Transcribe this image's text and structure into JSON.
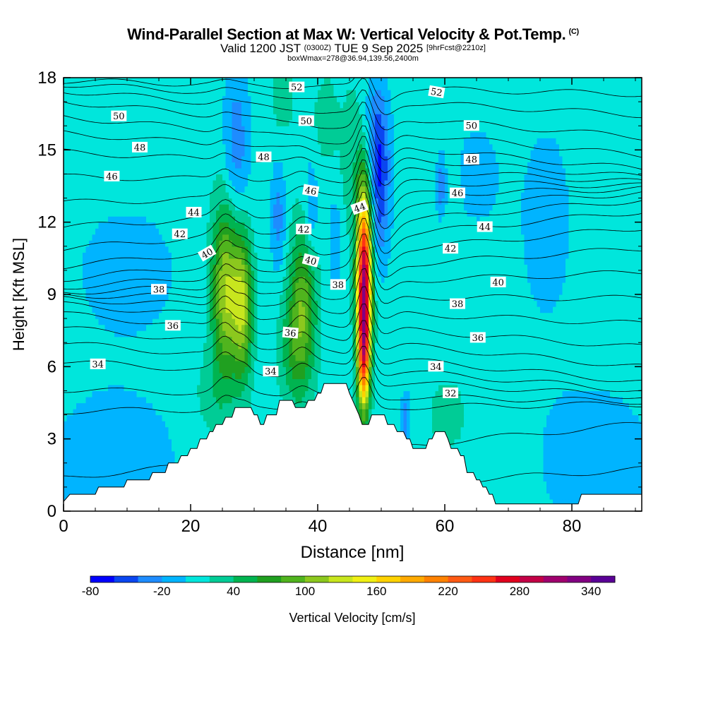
{
  "chart_data": {
    "type": "heatmap",
    "title": "Wind-Parallel Section at Max W: Vertical Velocity & Pot.Temp.",
    "title_mark": "(C)",
    "subtitle_main": "Valid 1200 JST",
    "subtitle_utc": "(0300Z)",
    "subtitle_date": "TUE 9 Sep 2025",
    "subtitle_forecast": "[9hrFcst@2210z]",
    "note": "boxWmax=278@36.94,139.56,2400m",
    "xlabel": "Distance [nm]",
    "ylabel": "Height [Kft MSL]",
    "xlim": [
      0,
      91
    ],
    "ylim": [
      0,
      18
    ],
    "x_ticks": [
      "0",
      "20",
      "40",
      "60",
      "80"
    ],
    "y_ticks": [
      "0",
      "3",
      "6",
      "9",
      "12",
      "15",
      "18"
    ],
    "colorbar": {
      "label": "Vertical Velocity [cm/s]",
      "ticks": [
        "-80",
        "-20",
        "40",
        "100",
        "160",
        "220",
        "280",
        "340"
      ],
      "levels": [
        -80,
        -60,
        -40,
        -20,
        0,
        20,
        40,
        60,
        80,
        100,
        120,
        140,
        160,
        180,
        200,
        220,
        240,
        260,
        280,
        300,
        320,
        340,
        360
      ],
      "colors": [
        "#0000ff",
        "#0a46f0",
        "#1e8cff",
        "#00b4ff",
        "#00e6dc",
        "#00cc96",
        "#00b450",
        "#20a020",
        "#50b41e",
        "#8cc81e",
        "#c8e61e",
        "#f0f014",
        "#ffd200",
        "#ffaa00",
        "#ff8200",
        "#ff5a14",
        "#ff3214",
        "#e1001e",
        "#c30046",
        "#a0006e",
        "#820082",
        "#5a0096"
      ]
    },
    "background_value": 10,
    "updrafts": [
      {
        "x": 25.5,
        "y": 9.2,
        "sx": 1.5,
        "sy": 2.6,
        "w": 110
      },
      {
        "x": 28.2,
        "y": 8.6,
        "sx": 1.1,
        "sy": 2.2,
        "w": 100
      },
      {
        "x": 37.6,
        "y": 8.4,
        "sx": 1.5,
        "sy": 2.3,
        "w": 85
      },
      {
        "x": 47.3,
        "y": 9.4,
        "sx": 0.8,
        "sy": 2.6,
        "w": 300
      },
      {
        "x": 47.2,
        "y": 6.2,
        "sx": 0.6,
        "sy": 1.5,
        "w": 130
      },
      {
        "x": 46.2,
        "y": 14.5,
        "sx": 1.8,
        "sy": 2.5,
        "w": 30
      },
      {
        "x": 34.5,
        "y": 17.2,
        "sx": 1.2,
        "sy": 1.0,
        "w": 25
      },
      {
        "x": 41.2,
        "y": 16.3,
        "sx": 1.2,
        "sy": 1.2,
        "w": 25
      },
      {
        "x": 60.5,
        "y": 4.0,
        "sx": 1.8,
        "sy": 0.9,
        "w": 28
      },
      {
        "x": 23.2,
        "y": 4.8,
        "sx": 2.0,
        "sy": 1.3,
        "w": 20
      },
      {
        "x": 35.8,
        "y": 6.6,
        "sx": 1.5,
        "sy": 1.6,
        "w": 30
      }
    ],
    "downdrafts": [
      {
        "x": 49.8,
        "y": 13.6,
        "sx": 1.1,
        "sy": 2.2,
        "w": -65
      },
      {
        "x": 48.6,
        "y": 15.8,
        "sx": 1.6,
        "sy": 1.7,
        "w": -35
      },
      {
        "x": 27.2,
        "y": 15.0,
        "sx": 1.4,
        "sy": 2.4,
        "w": -45
      },
      {
        "x": 33.8,
        "y": 12.2,
        "sx": 0.8,
        "sy": 1.5,
        "w": -40
      },
      {
        "x": 39.0,
        "y": 12.5,
        "sx": 0.8,
        "sy": 1.5,
        "w": -30
      },
      {
        "x": 42.8,
        "y": 11.2,
        "sx": 0.8,
        "sy": 1.5,
        "w": -25
      },
      {
        "x": 59.4,
        "y": 13.5,
        "sx": 0.5,
        "sy": 0.8,
        "w": -40
      },
      {
        "x": 53.8,
        "y": 3.7,
        "sx": 0.5,
        "sy": 0.8,
        "w": -45
      },
      {
        "x": 10.0,
        "y": 10.0,
        "sx": 6.0,
        "sy": 2.0,
        "w": -20
      },
      {
        "x": 8.0,
        "y": 2.0,
        "sx": 8.0,
        "sy": 2.5,
        "w": -20
      },
      {
        "x": 84.0,
        "y": 2.0,
        "sx": 7.0,
        "sy": 2.5,
        "w": -20
      },
      {
        "x": 76.0,
        "y": 12.0,
        "sx": 4.0,
        "sy": 4.0,
        "w": -15
      },
      {
        "x": 65.0,
        "y": 14.0,
        "sx": 3.0,
        "sy": 2.0,
        "w": -15
      }
    ],
    "theta_contours": {
      "base_y": [
        1.0,
        2.5,
        4.3,
        4.8,
        5.5,
        6.0,
        6.5,
        7.1,
        7.7,
        8.3,
        8.9,
        9.5,
        10.1,
        10.7,
        11.3,
        11.9,
        12.5,
        13.1,
        13.7,
        14.3,
        14.8,
        15.3,
        15.9,
        16.5,
        17.1,
        17.6
      ],
      "disturbances": [
        {
          "x": 25.5,
          "y": 9.0,
          "sx": 1.4,
          "sy": 4.0,
          "a": 1.0
        },
        {
          "x": 28.5,
          "y": 8.5,
          "sx": 1.0,
          "sy": 3.0,
          "a": 0.5
        },
        {
          "x": 37.5,
          "y": 8.5,
          "sx": 1.5,
          "sy": 3.5,
          "a": 0.8
        },
        {
          "x": 47.3,
          "y": 10.0,
          "sx": 1.1,
          "sy": 5.5,
          "a": 2.0
        },
        {
          "x": 50.5,
          "y": 13.5,
          "sx": 1.5,
          "sy": 4.0,
          "a": -0.8
        }
      ],
      "labels": [
        {
          "text": "52",
          "x": 36.7,
          "y": 17.6,
          "angle": 0
        },
        {
          "text": "52",
          "x": 58.7,
          "y": 17.4,
          "angle": 10
        },
        {
          "text": "50",
          "x": 8.7,
          "y": 16.4,
          "angle": 0
        },
        {
          "text": "50",
          "x": 38.2,
          "y": 16.2,
          "angle": 0
        },
        {
          "text": "50",
          "x": 64.2,
          "y": 16.0,
          "angle": 0
        },
        {
          "text": "48",
          "x": 12.0,
          "y": 15.1,
          "angle": 0
        },
        {
          "text": "48",
          "x": 31.5,
          "y": 14.7,
          "angle": 0
        },
        {
          "text": "48",
          "x": 64.2,
          "y": 14.6,
          "angle": 0
        },
        {
          "text": "46",
          "x": 7.6,
          "y": 13.9,
          "angle": 0
        },
        {
          "text": "46",
          "x": 38.9,
          "y": 13.3,
          "angle": 10
        },
        {
          "text": "46",
          "x": 62.0,
          "y": 13.2,
          "angle": 0
        },
        {
          "text": "44",
          "x": 20.5,
          "y": 12.4,
          "angle": 0
        },
        {
          "text": "44",
          "x": 46.6,
          "y": 12.6,
          "angle": -20
        },
        {
          "text": "44",
          "x": 66.3,
          "y": 11.8,
          "angle": 0
        },
        {
          "text": "42",
          "x": 18.3,
          "y": 11.5,
          "angle": 0
        },
        {
          "text": "42",
          "x": 37.8,
          "y": 11.7,
          "angle": 0
        },
        {
          "text": "42",
          "x": 60.9,
          "y": 10.9,
          "angle": 0
        },
        {
          "text": "40",
          "x": 22.6,
          "y": 10.7,
          "angle": -30
        },
        {
          "text": "40",
          "x": 38.9,
          "y": 10.4,
          "angle": 15
        },
        {
          "text": "40",
          "x": 68.4,
          "y": 9.5,
          "angle": 0
        },
        {
          "text": "38",
          "x": 15.0,
          "y": 9.2,
          "angle": 0
        },
        {
          "text": "38",
          "x": 43.2,
          "y": 9.4,
          "angle": 0
        },
        {
          "text": "38",
          "x": 62.0,
          "y": 8.6,
          "angle": 0
        },
        {
          "text": "36",
          "x": 17.2,
          "y": 7.7,
          "angle": 0
        },
        {
          "text": "36",
          "x": 35.7,
          "y": 7.4,
          "angle": 5
        },
        {
          "text": "36",
          "x": 65.2,
          "y": 7.2,
          "angle": 0
        },
        {
          "text": "34",
          "x": 5.4,
          "y": 6.1,
          "angle": 0
        },
        {
          "text": "34",
          "x": 32.6,
          "y": 5.8,
          "angle": 0
        },
        {
          "text": "34",
          "x": 58.6,
          "y": 6.0,
          "angle": 0
        },
        {
          "text": "32",
          "x": 60.9,
          "y": 4.9,
          "angle": 0
        }
      ]
    },
    "terrain": [
      [
        0,
        0.4
      ],
      [
        1,
        0.7
      ],
      [
        5,
        0.7
      ],
      [
        5.5,
        1.0
      ],
      [
        9.5,
        1.0
      ],
      [
        10,
        1.3
      ],
      [
        13.5,
        1.3
      ],
      [
        14,
        1.6
      ],
      [
        16,
        1.6
      ],
      [
        16.5,
        2.0
      ],
      [
        18,
        2.0
      ],
      [
        18.5,
        2.3
      ],
      [
        19.5,
        2.3
      ],
      [
        20,
        2.6
      ],
      [
        21,
        2.6
      ],
      [
        21.5,
        3.0
      ],
      [
        22.5,
        3.0
      ],
      [
        23,
        3.3
      ],
      [
        23.5,
        3.3
      ],
      [
        24,
        3.6
      ],
      [
        25,
        3.6
      ],
      [
        25.5,
        3.9
      ],
      [
        26.5,
        3.9
      ],
      [
        27,
        4.3
      ],
      [
        29.5,
        4.3
      ],
      [
        30,
        4.0
      ],
      [
        30.5,
        4.0
      ],
      [
        31,
        3.6
      ],
      [
        31.5,
        3.6
      ],
      [
        32,
        4.0
      ],
      [
        33.5,
        4.0
      ],
      [
        34,
        4.6
      ],
      [
        36,
        4.6
      ],
      [
        36.5,
        4.3
      ],
      [
        38,
        4.3
      ],
      [
        38.5,
        4.6
      ],
      [
        39.5,
        4.6
      ],
      [
        40,
        4.9
      ],
      [
        40.5,
        4.9
      ],
      [
        41,
        5.3
      ],
      [
        44.5,
        5.3
      ],
      [
        45,
        4.9
      ],
      [
        45.5,
        4.6
      ],
      [
        46,
        4.3
      ],
      [
        46.5,
        4.0
      ],
      [
        47,
        3.6
      ],
      [
        48,
        3.6
      ],
      [
        48.5,
        4.0
      ],
      [
        50.5,
        4.0
      ],
      [
        51,
        3.6
      ],
      [
        52,
        3.6
      ],
      [
        52.5,
        3.3
      ],
      [
        53.5,
        3.3
      ],
      [
        54,
        3.0
      ],
      [
        54.5,
        3.0
      ],
      [
        55,
        2.6
      ],
      [
        57,
        2.6
      ],
      [
        57.5,
        3.0
      ],
      [
        58,
        3.0
      ],
      [
        58.5,
        3.3
      ],
      [
        60,
        3.3
      ],
      [
        60.5,
        3.0
      ],
      [
        61,
        2.6
      ],
      [
        62,
        2.6
      ],
      [
        62.5,
        2.3
      ],
      [
        63,
        2.3
      ],
      [
        63.5,
        1.6
      ],
      [
        64.5,
        1.6
      ],
      [
        65,
        1.3
      ],
      [
        65.5,
        1.3
      ],
      [
        66,
        1.0
      ],
      [
        66.5,
        1.0
      ],
      [
        67,
        0.7
      ],
      [
        67.5,
        0.7
      ],
      [
        68,
        0.3
      ],
      [
        81,
        0.3
      ],
      [
        81.5,
        0.7
      ],
      [
        91,
        0.7
      ],
      [
        91,
        0.0
      ]
    ]
  }
}
